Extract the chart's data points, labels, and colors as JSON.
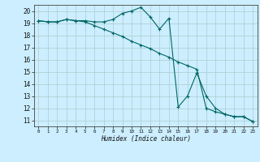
{
  "title": "",
  "xlabel": "Humidex (Indice chaleur)",
  "ylabel": "",
  "bg_color": "#cceeff",
  "grid_color": "#aacccc",
  "line_color": "#006666",
  "xlim": [
    -0.5,
    23.5
  ],
  "ylim": [
    10.5,
    20.5
  ],
  "xticks": [
    0,
    1,
    2,
    3,
    4,
    5,
    6,
    7,
    8,
    9,
    10,
    11,
    12,
    13,
    14,
    15,
    16,
    17,
    18,
    19,
    20,
    21,
    22,
    23
  ],
  "yticks": [
    11,
    12,
    13,
    14,
    15,
    16,
    17,
    18,
    19,
    20
  ],
  "line1_x": [
    0,
    1,
    2,
    3,
    4,
    5,
    6,
    7,
    8,
    9,
    10,
    11,
    12,
    13,
    14,
    15,
    16,
    17,
    18,
    19,
    20,
    21,
    22,
    23
  ],
  "line1_y": [
    19.2,
    19.1,
    19.1,
    19.3,
    19.2,
    19.2,
    19.1,
    19.1,
    19.3,
    19.8,
    20.0,
    20.3,
    19.5,
    18.5,
    19.4,
    12.1,
    13.0,
    14.9,
    13.0,
    12.0,
    11.5,
    11.3,
    11.3,
    10.9
  ],
  "line2_x": [
    0,
    1,
    2,
    3,
    4,
    5,
    6,
    7,
    8,
    9,
    10,
    11,
    12,
    13,
    14,
    15,
    16,
    17,
    18,
    19,
    20,
    21,
    22,
    23
  ],
  "line2_y": [
    19.2,
    19.1,
    19.1,
    19.3,
    19.2,
    19.1,
    18.8,
    18.5,
    18.2,
    17.9,
    17.5,
    17.2,
    16.9,
    16.5,
    16.2,
    15.8,
    15.5,
    15.2,
    12.0,
    11.7,
    11.5,
    11.3,
    11.3,
    10.9
  ]
}
